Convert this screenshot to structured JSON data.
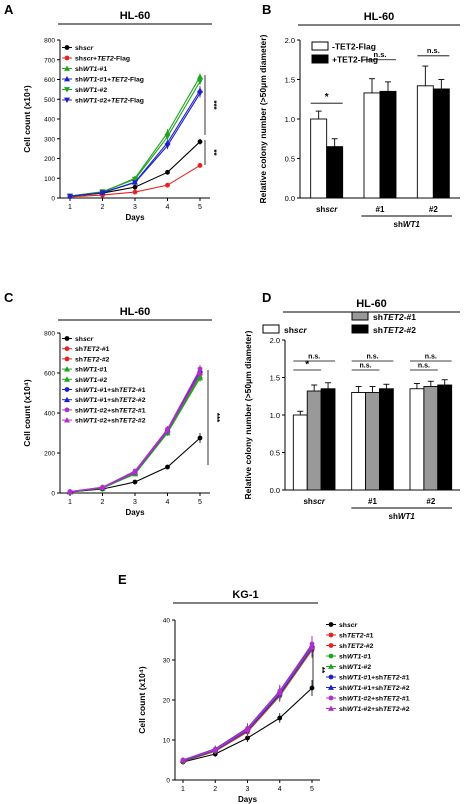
{
  "chart_data": [
    {
      "id": "A",
      "type": "line",
      "panel_label": "A",
      "title": "HL-60",
      "xlabel": "Days",
      "ylabel": "Cell count (x10⁴)",
      "x": [
        1,
        2,
        3,
        4,
        5
      ],
      "xlim": [
        1,
        5
      ],
      "ylim": [
        0,
        800
      ],
      "yticks": [
        0,
        100,
        200,
        300,
        400,
        500,
        600,
        700,
        800
      ],
      "grid": false,
      "legend": "top-left",
      "series": [
        {
          "name": "shscr",
          "color": "#000000",
          "marker": "circle",
          "values": [
            8,
            25,
            55,
            130,
            285
          ],
          "err": [
            2,
            3,
            5,
            10,
            15
          ]
        },
        {
          "name": "shscr+TET2-Flag",
          "color": "#e8221c",
          "marker": "circle",
          "values": [
            6,
            15,
            30,
            65,
            165
          ],
          "err": [
            2,
            3,
            4,
            6,
            12
          ]
        },
        {
          "name": "shWT1-#1",
          "color": "#1fa51f",
          "marker": "triangle",
          "values": [
            10,
            30,
            100,
            330,
            615
          ],
          "err": [
            2,
            4,
            8,
            20,
            15
          ]
        },
        {
          "name": "shWT1-#1+TET2-Flag",
          "color": "#2020c8",
          "marker": "triangle",
          "values": [
            9,
            28,
            80,
            280,
            545
          ],
          "err": [
            2,
            4,
            7,
            18,
            22
          ]
        },
        {
          "name": "shWT1-#2",
          "color": "#1fa51f",
          "marker": "triangle-down",
          "values": [
            10,
            32,
            95,
            310,
            590
          ],
          "err": [
            2,
            4,
            8,
            20,
            18
          ]
        },
        {
          "name": "shWT1-#2+TET2-Flag",
          "color": "#2020c8",
          "marker": "triangle-down",
          "values": [
            9,
            27,
            78,
            265,
            530
          ],
          "err": [
            2,
            4,
            7,
            18,
            22
          ]
        }
      ],
      "annotations": [
        "***",
        "**"
      ]
    },
    {
      "id": "B",
      "type": "bar",
      "panel_label": "B",
      "title": "HL-60",
      "ylabel": "Relative colony number (>50μm diameter)",
      "ylim": [
        0,
        2.0
      ],
      "yticks": [
        0.0,
        0.5,
        1.0,
        1.5,
        2.0
      ],
      "categories": [
        "shscr",
        "#1",
        "#2"
      ],
      "group_label": "shWT1",
      "legend": "top-left",
      "series": [
        {
          "name": "-TET2-Flag",
          "color": "#ffffff",
          "values": [
            1.0,
            1.33,
            1.42
          ],
          "err": [
            0.1,
            0.18,
            0.25
          ]
        },
        {
          "name": "+TET2-Flag",
          "color": "#000000",
          "values": [
            0.65,
            1.35,
            1.38
          ],
          "err": [
            0.1,
            0.12,
            0.12
          ]
        }
      ],
      "annotations": [
        "*",
        "n.s.",
        "n.s."
      ]
    },
    {
      "id": "C",
      "type": "line",
      "panel_label": "C",
      "title": "HL-60",
      "xlabel": "Days",
      "ylabel": "Cell count (x10⁴)",
      "x": [
        1,
        2,
        3,
        4,
        5
      ],
      "xlim": [
        1,
        5
      ],
      "ylim": [
        0,
        800
      ],
      "yticks": [
        0,
        200,
        400,
        600,
        800
      ],
      "grid": false,
      "legend": "top-left",
      "series": [
        {
          "name": "shscr",
          "color": "#000000",
          "marker": "circle",
          "values": [
            5,
            20,
            55,
            130,
            275
          ],
          "err": [
            2,
            3,
            5,
            10,
            25
          ]
        },
        {
          "name": "shTET2-#1",
          "color": "#e8221c",
          "marker": "circle",
          "values": [
            6,
            26,
            100,
            310,
            595
          ],
          "err": [
            2,
            4,
            8,
            15,
            20
          ]
        },
        {
          "name": "shTET2-#2",
          "color": "#e8221c",
          "marker": "circle",
          "values": [
            6,
            27,
            105,
            315,
            600
          ],
          "err": [
            2,
            4,
            8,
            15,
            20
          ]
        },
        {
          "name": "shWT1-#1",
          "color": "#1fa51f",
          "marker": "triangle",
          "values": [
            6,
            24,
            95,
            300,
            575
          ],
          "err": [
            2,
            4,
            8,
            15,
            20
          ]
        },
        {
          "name": "shWT1-#2",
          "color": "#1fa51f",
          "marker": "triangle",
          "values": [
            6,
            25,
            98,
            305,
            585
          ],
          "err": [
            2,
            4,
            8,
            15,
            20
          ]
        },
        {
          "name": "shWT1-#1+shTET2-#1",
          "color": "#2020c8",
          "marker": "circle",
          "values": [
            6,
            27,
            102,
            310,
            605
          ],
          "err": [
            2,
            4,
            8,
            15,
            20
          ]
        },
        {
          "name": "shWT1-#1+shTET2-#2",
          "color": "#2020c8",
          "marker": "triangle",
          "values": [
            6,
            28,
            104,
            318,
            615
          ],
          "err": [
            2,
            4,
            8,
            15,
            20
          ]
        },
        {
          "name": "shWT1-#2+shTET2-#1",
          "color": "#b030c8",
          "marker": "circle",
          "values": [
            7,
            29,
            110,
            320,
            620
          ],
          "err": [
            2,
            4,
            8,
            15,
            20
          ]
        },
        {
          "name": "shWT1-#2+shTET2-#2",
          "color": "#b030c8",
          "marker": "triangle",
          "values": [
            6,
            27,
            103,
            312,
            600
          ],
          "err": [
            2,
            4,
            8,
            15,
            20
          ]
        }
      ],
      "annotations": [
        "***"
      ]
    },
    {
      "id": "D",
      "type": "bar",
      "panel_label": "D",
      "title": "HL-60",
      "ylabel": "Relative colony number (>50μm diameter)",
      "ylim": [
        0,
        2.0
      ],
      "yticks": [
        0.0,
        0.5,
        1.0,
        1.5,
        2.0
      ],
      "categories": [
        "shscr",
        "#1",
        "#2"
      ],
      "group_label": "shWT1",
      "legend": "top",
      "series": [
        {
          "name": "shscr",
          "color": "#ffffff",
          "values": [
            1.0,
            1.3,
            1.35
          ],
          "err": [
            0.05,
            0.08,
            0.07
          ]
        },
        {
          "name": "shTET2-#1",
          "color": "#999999",
          "values": [
            1.32,
            1.3,
            1.38
          ],
          "err": [
            0.08,
            0.08,
            0.07
          ]
        },
        {
          "name": "shTET2-#2",
          "color": "#000000",
          "values": [
            1.35,
            1.35,
            1.4
          ],
          "err": [
            0.08,
            0.06,
            0.07
          ]
        }
      ],
      "annotations": [
        "n.s.",
        "*",
        "n.s.",
        "n.s.",
        "n.s.",
        "n.s."
      ]
    },
    {
      "id": "E",
      "type": "line",
      "panel_label": "E",
      "title": "KG-1",
      "xlabel": "Days",
      "ylabel": "Cell count (x10⁴)",
      "x": [
        1,
        2,
        3,
        4,
        5
      ],
      "xlim": [
        1,
        5
      ],
      "ylim": [
        0,
        40
      ],
      "yticks": [
        0,
        10,
        20,
        30,
        40
      ],
      "grid": false,
      "legend": "right",
      "series": [
        {
          "name": "shscr",
          "color": "#000000",
          "marker": "circle",
          "values": [
            4.5,
            6.5,
            10.5,
            15.5,
            23
          ],
          "err": [
            0.5,
            0.7,
            1.0,
            1.2,
            2.0
          ]
        },
        {
          "name": "shTET2-#1",
          "color": "#e8221c",
          "marker": "circle",
          "values": [
            4.8,
            7.5,
            12.5,
            21.5,
            33
          ],
          "err": [
            0.5,
            0.8,
            1.2,
            1.5,
            2.0
          ]
        },
        {
          "name": "shTET2-#2",
          "color": "#e8221c",
          "marker": "circle",
          "values": [
            4.6,
            7.2,
            12.0,
            21.0,
            32.5
          ],
          "err": [
            0.5,
            0.8,
            1.2,
            1.5,
            2.0
          ]
        },
        {
          "name": "shWT1-#1",
          "color": "#1fa51f",
          "marker": "circle",
          "values": [
            4.7,
            7.3,
            12.3,
            21.2,
            32.8
          ],
          "err": [
            0.5,
            0.8,
            1.2,
            1.5,
            2.0
          ]
        },
        {
          "name": "shWT1-#2",
          "color": "#1fa51f",
          "marker": "triangle",
          "values": [
            4.9,
            7.6,
            12.8,
            22.0,
            33.5
          ],
          "err": [
            0.5,
            0.8,
            1.2,
            1.5,
            2.0
          ]
        },
        {
          "name": "shWT1-#1+shTET2-#1",
          "color": "#2020c8",
          "marker": "circle",
          "values": [
            4.8,
            7.4,
            12.4,
            21.4,
            33.0
          ],
          "err": [
            0.5,
            0.8,
            1.2,
            1.5,
            2.0
          ]
        },
        {
          "name": "shWT1-#1+shTET2-#2",
          "color": "#2020c8",
          "marker": "triangle",
          "values": [
            5.0,
            7.8,
            13.0,
            22.3,
            33.8
          ],
          "err": [
            0.5,
            0.8,
            1.2,
            1.5,
            2.0
          ]
        },
        {
          "name": "shWT1-#2+shTET2-#1",
          "color": "#b030c8",
          "marker": "circle",
          "values": [
            5.0,
            7.7,
            12.9,
            22.2,
            34.0
          ],
          "err": [
            0.5,
            0.8,
            1.2,
            1.5,
            2.0
          ]
        },
        {
          "name": "shWT1-#2+shTET2-#2",
          "color": "#b030c8",
          "marker": "triangle",
          "values": [
            4.9,
            7.5,
            12.6,
            21.8,
            33.2
          ],
          "err": [
            0.5,
            0.8,
            1.2,
            1.5,
            2.0
          ]
        }
      ],
      "annotations": [
        "**"
      ]
    }
  ]
}
